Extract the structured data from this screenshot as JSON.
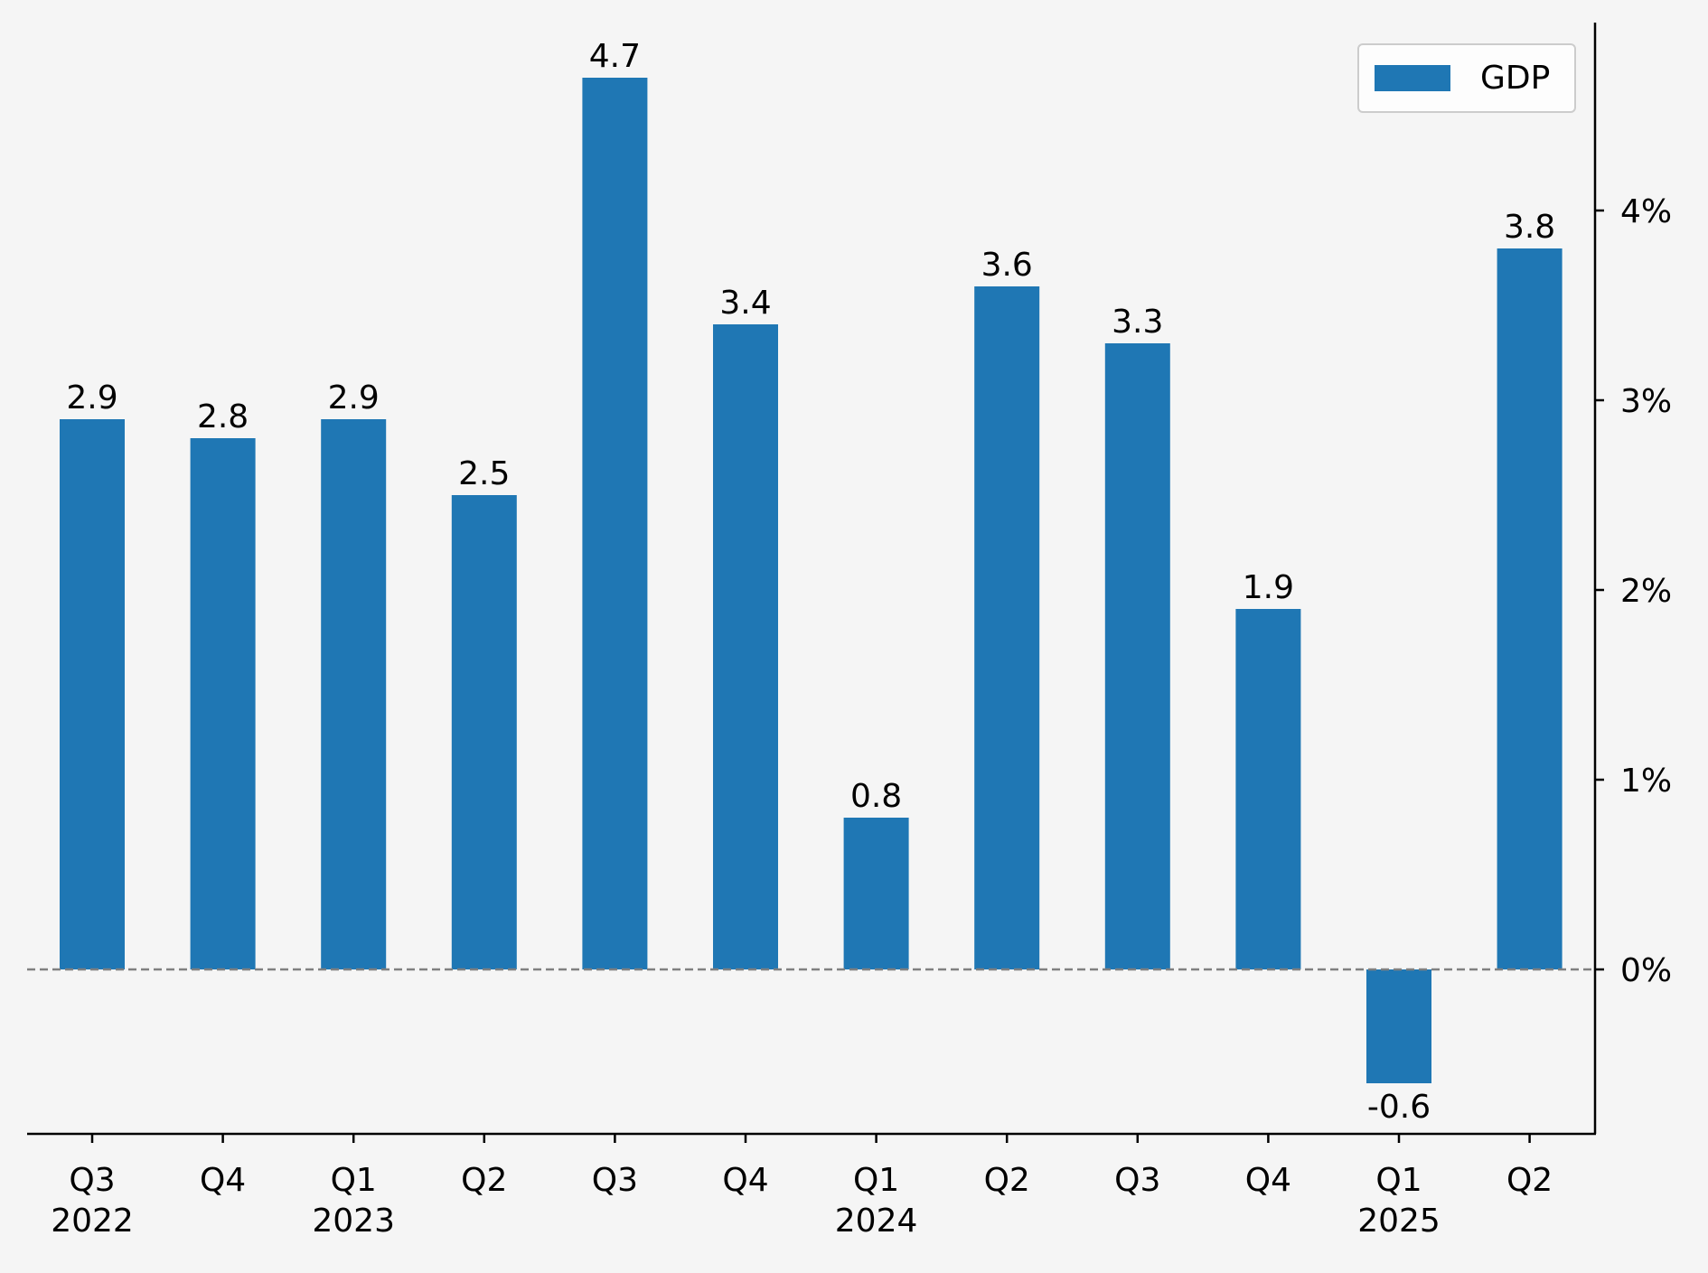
{
  "colors": {
    "background": "#f5f5f5",
    "bar": "#1f77b4",
    "axis": "#000000",
    "zero_line": "#808080",
    "legend_border": "#cccccc",
    "legend_fill": "#ffffff"
  },
  "chart_data": {
    "type": "bar",
    "title": "",
    "xlabel": "",
    "ylabel": "",
    "y_axis_side": "right",
    "y_tick_format": "percent",
    "ylim": [
      -0.87,
      4.98
    ],
    "yticks": [
      0,
      1,
      2,
      3,
      4
    ],
    "ytick_labels": [
      "0%",
      "1%",
      "2%",
      "3%",
      "4%"
    ],
    "zero_line": {
      "value": 0,
      "style": "dashed"
    },
    "legend": {
      "placement": "top-right",
      "entries": [
        "GDP"
      ]
    },
    "categories": [
      {
        "quarter": "Q3",
        "year": "2022"
      },
      {
        "quarter": "Q4",
        "year": ""
      },
      {
        "quarter": "Q1",
        "year": "2023"
      },
      {
        "quarter": "Q2",
        "year": ""
      },
      {
        "quarter": "Q3",
        "year": ""
      },
      {
        "quarter": "Q4",
        "year": ""
      },
      {
        "quarter": "Q1",
        "year": "2024"
      },
      {
        "quarter": "Q2",
        "year": ""
      },
      {
        "quarter": "Q3",
        "year": ""
      },
      {
        "quarter": "Q4",
        "year": ""
      },
      {
        "quarter": "Q1",
        "year": "2025"
      },
      {
        "quarter": "Q2",
        "year": ""
      }
    ],
    "series": [
      {
        "name": "GDP",
        "values": [
          2.9,
          2.8,
          2.9,
          2.5,
          4.7,
          3.4,
          0.8,
          3.6,
          3.3,
          1.9,
          -0.6,
          3.8
        ],
        "value_labels": [
          "2.9",
          "2.8",
          "2.9",
          "2.5",
          "4.7",
          "3.4",
          "0.8",
          "3.6",
          "3.3",
          "1.9",
          "-0.6",
          "3.8"
        ]
      }
    ]
  }
}
